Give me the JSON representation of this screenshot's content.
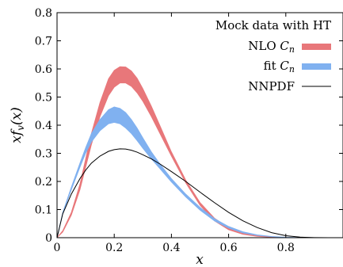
{
  "chart_data": {
    "type": "area",
    "title": "Mock data with HT",
    "xlabel": "x",
    "ylabel": "xf_v(x)",
    "xlim": [
      0,
      1
    ],
    "ylim": [
      0,
      0.8
    ],
    "xticks": [
      0,
      0.2,
      0.4,
      0.6,
      0.8
    ],
    "xtick_labels": [
      "0",
      "0.2",
      "0.4",
      "0.6",
      "0.8"
    ],
    "yticks": [
      0,
      0.1,
      0.2,
      0.3,
      0.4,
      0.5,
      0.6,
      0.7,
      0.8
    ],
    "ytick_labels": [
      "0",
      "0.1",
      "0.2",
      "0.3",
      "0.4",
      "0.5",
      "0.6",
      "0.7",
      "0.8"
    ],
    "grid": false,
    "legend_position": "top-right",
    "series": [
      {
        "name": "NLO C_n",
        "name_base": "NLO ",
        "name_symbol": "C",
        "name_sub": "n",
        "kind": "band",
        "color": "#e8777a",
        "x": [
          0.0,
          0.02,
          0.05,
          0.08,
          0.1,
          0.12,
          0.15,
          0.18,
          0.2,
          0.22,
          0.24,
          0.26,
          0.28,
          0.3,
          0.33,
          0.36,
          0.4,
          0.45,
          0.5,
          0.55,
          0.6,
          0.65,
          0.7,
          0.75,
          0.8,
          0.85,
          0.9,
          0.95,
          1.0
        ],
        "upper": [
          0.0,
          0.025,
          0.09,
          0.19,
          0.28,
          0.37,
          0.48,
          0.565,
          0.595,
          0.608,
          0.607,
          0.593,
          0.567,
          0.53,
          0.467,
          0.398,
          0.305,
          0.205,
          0.125,
          0.07,
          0.035,
          0.016,
          0.0065,
          0.0025,
          0.0008,
          0.0002,
          0.0,
          0.0,
          0.0
        ],
        "lower": [
          0.0,
          0.02,
          0.08,
          0.17,
          0.25,
          0.33,
          0.43,
          0.505,
          0.535,
          0.55,
          0.55,
          0.538,
          0.515,
          0.485,
          0.43,
          0.37,
          0.29,
          0.195,
          0.115,
          0.06,
          0.028,
          0.012,
          0.0045,
          0.0015,
          0.0005,
          0.0001,
          0.0,
          0.0,
          0.0
        ]
      },
      {
        "name": "fit C_n",
        "name_base": "fit ",
        "name_symbol": "C",
        "name_sub": "n",
        "kind": "band",
        "color": "#80b1f0",
        "x": [
          0.0,
          0.02,
          0.05,
          0.08,
          0.1,
          0.12,
          0.15,
          0.18,
          0.2,
          0.22,
          0.24,
          0.26,
          0.28,
          0.3,
          0.33,
          0.36,
          0.4,
          0.45,
          0.5,
          0.55,
          0.6,
          0.65,
          0.7,
          0.75,
          0.8,
          0.85,
          0.9,
          0.95,
          1.0
        ],
        "upper": [
          0.0,
          0.09,
          0.18,
          0.265,
          0.32,
          0.37,
          0.42,
          0.455,
          0.465,
          0.46,
          0.445,
          0.42,
          0.39,
          0.355,
          0.305,
          0.262,
          0.21,
          0.155,
          0.108,
          0.068,
          0.04,
          0.021,
          0.01,
          0.0045,
          0.0018,
          0.0006,
          0.0001,
          0.0,
          0.0
        ],
        "lower": [
          0.0,
          0.085,
          0.17,
          0.25,
          0.3,
          0.34,
          0.38,
          0.405,
          0.41,
          0.405,
          0.39,
          0.37,
          0.345,
          0.318,
          0.28,
          0.245,
          0.198,
          0.145,
          0.098,
          0.06,
          0.034,
          0.017,
          0.008,
          0.0035,
          0.0013,
          0.0004,
          0.0001,
          0.0,
          0.0
        ]
      },
      {
        "name": "NNPDF",
        "name_base": "NNPDF",
        "kind": "line",
        "color": "#000000",
        "x": [
          0.0,
          0.02,
          0.05,
          0.08,
          0.1,
          0.12,
          0.15,
          0.18,
          0.2,
          0.22,
          0.24,
          0.26,
          0.28,
          0.3,
          0.33,
          0.36,
          0.4,
          0.45,
          0.5,
          0.55,
          0.6,
          0.65,
          0.7,
          0.75,
          0.8,
          0.85,
          0.9,
          0.95,
          1.0
        ],
        "y": [
          0.0,
          0.085,
          0.155,
          0.21,
          0.24,
          0.265,
          0.29,
          0.307,
          0.313,
          0.316,
          0.315,
          0.311,
          0.304,
          0.295,
          0.28,
          0.262,
          0.235,
          0.2,
          0.162,
          0.125,
          0.09,
          0.06,
          0.036,
          0.018,
          0.007,
          0.002,
          0.0005,
          0.0001,
          0.0
        ]
      }
    ]
  }
}
